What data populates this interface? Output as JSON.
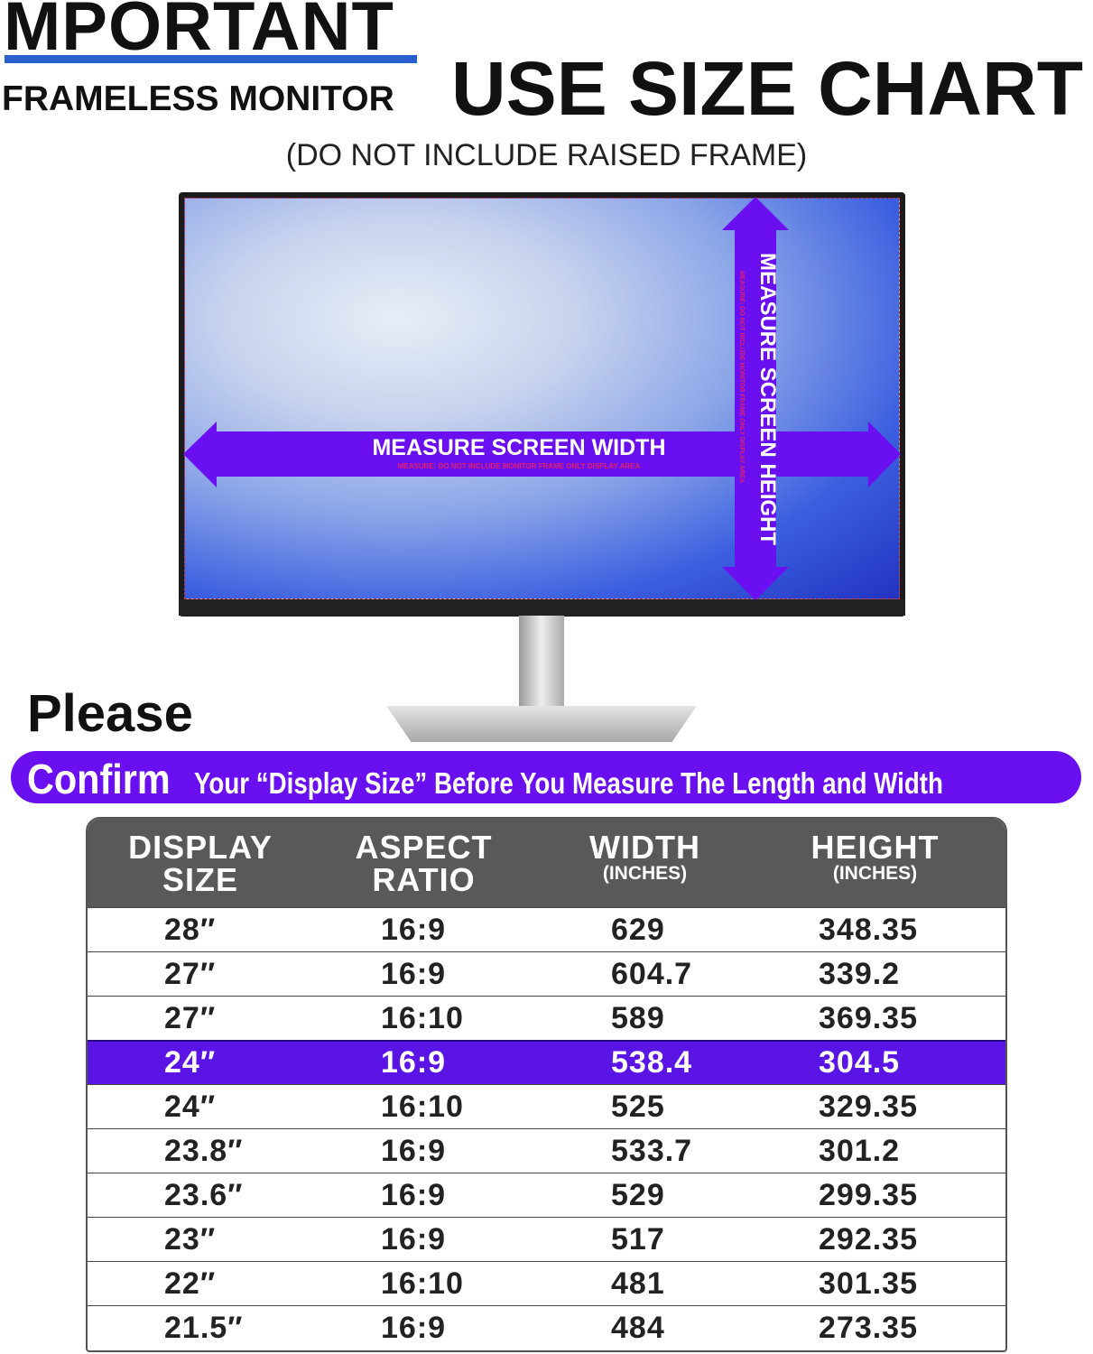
{
  "header": {
    "important": "MPORTANT",
    "frameless": "FRAMELESS MONITOR",
    "title": "USE SIZE CHART",
    "subtitle": "(DO NOT INCLUDE RAISED FRAME)"
  },
  "monitor": {
    "width_label": "MEASURE SCREEN WIDTH",
    "width_note": "MEASURE: DO NOT INCLUDE MONITOR FRAME ONLY DISPLAY AREA",
    "height_label": "MEASURE SCREEN HEIGHT",
    "height_note": "MEASURE: DO NOT INCLUDE MONITOR FRAME ONLY DISPLAY AREA",
    "arrow_color": "#6a10f0"
  },
  "notice": {
    "please": "Please",
    "confirm": "Confirm",
    "rest": "Your “Display Size” Before You Measure The Length and Width",
    "color": "#6a10f0"
  },
  "table": {
    "headers": [
      {
        "main": "DISPLAY SIZE",
        "sub": ""
      },
      {
        "main": "ASPECT RATIO",
        "sub": ""
      },
      {
        "main": "WIDTH",
        "sub": "(INCHES)"
      },
      {
        "main": "HEIGHT",
        "sub": "(INCHES)"
      }
    ],
    "rows": [
      [
        "28″",
        "16:9",
        "629",
        "348.35"
      ],
      [
        "27″",
        "16:9",
        "604.7",
        "339.2"
      ],
      [
        "27″",
        "16:10",
        "589",
        "369.35"
      ],
      [
        "24″",
        "16:9",
        "538.4",
        "304.5"
      ],
      [
        "24″",
        "16:10",
        "525",
        "329.35"
      ],
      [
        "23.8″",
        "16:9",
        "533.7",
        "301.2"
      ],
      [
        "23.6″",
        "16:9",
        "529",
        "299.35"
      ],
      [
        "23″",
        "16:9",
        "517",
        "292.35"
      ],
      [
        "22″",
        "16:10",
        "481",
        "301.35"
      ],
      [
        "21.5″",
        "16:9",
        "484",
        "273.35"
      ]
    ],
    "highlighted_row": 3
  }
}
